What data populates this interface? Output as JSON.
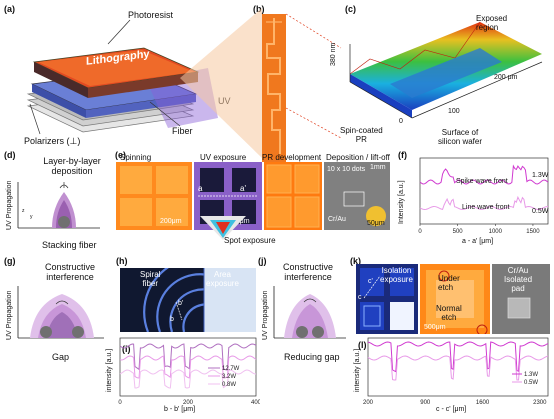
{
  "a": {
    "label": "(a)",
    "photoresist": "Photoresist",
    "lithography": "Lithography",
    "uv": "UV",
    "fiber": "Fiber",
    "polarizers": "Polarizers (⊥)"
  },
  "b": {
    "label": "(b)"
  },
  "c": {
    "label": "(c)",
    "exposed": "Exposed\nregion",
    "z": "380 nm",
    "x0": "0",
    "x100": "100",
    "x200": "200 μm",
    "spin": "Spin-coated\nPR",
    "surface": "Surface of\nsilicon wafer"
  },
  "d": {
    "label": "(d)",
    "title": "Layer-by-layer\ndeposition",
    "axis": "UV Propagation",
    "caption": "Stacking fiber",
    "axes_z": "z",
    "axes_y": "y"
  },
  "e": {
    "label": "(e)",
    "spinning": "Spinning",
    "uv": "UV exposure",
    "pr": "PR development",
    "dep": "Deposition / lift-off",
    "scale1": "200μm",
    "scale2": "500μm",
    "a": "a",
    "a2": "a'",
    "spot": "Spot exposure",
    "dots": "10 x 10 dots",
    "scale3": "1mm",
    "crau": "Cr/Au",
    "scale4": "50μm"
  },
  "f": {
    "label": "(f)",
    "ylabel": "Intensity [a.u.]",
    "xlabel": "a - a' [μm]",
    "spike": "Spike wave front",
    "line": "Line wave front",
    "w1": "1.3W",
    "w2": "0.5W",
    "ticks": [
      "0",
      "500",
      "1000",
      "1500"
    ]
  },
  "g": {
    "label": "(g)",
    "title": "Constructive\ninterference",
    "axis": "UV Propagation",
    "caption": "Gap"
  },
  "h": {
    "label": "(h)",
    "spiral": "Spiral\nfiber",
    "area": "Area\nexposure",
    "b": "b",
    "b2": "b'"
  },
  "i": {
    "label": "(i)",
    "ylabel": "intensity [a.u.]",
    "xlabel": "b - b' [μm]",
    "ticks": [
      "0",
      "200",
      "400"
    ],
    "legend": [
      "12.7W",
      "3.2W",
      "0.8W"
    ]
  },
  "j": {
    "label": "(j)",
    "title": "Constructive\ninterference",
    "axis": "UV Propagation",
    "caption": "Reducing gap"
  },
  "k": {
    "label": "(k)",
    "iso": "Isolation\nexposure",
    "under": "Under\netch",
    "normal": "Normal\netch",
    "pad": "Cr/Au\nIsolated\npad",
    "c": "c",
    "c2": "c'",
    "scale": "500μm"
  },
  "l": {
    "label": "(l)",
    "ylabel": "intensity [a.u.]",
    "xlabel": "c - c' [μm]",
    "ticks": [
      "200",
      "900",
      "1600",
      "2300"
    ],
    "legend": [
      "1.3W",
      "0.5W"
    ]
  },
  "colors": {
    "pink": "#d03ad0",
    "lightpink": "#e89ae8",
    "orange": "#ff6a00",
    "purple": "#b070c0"
  }
}
